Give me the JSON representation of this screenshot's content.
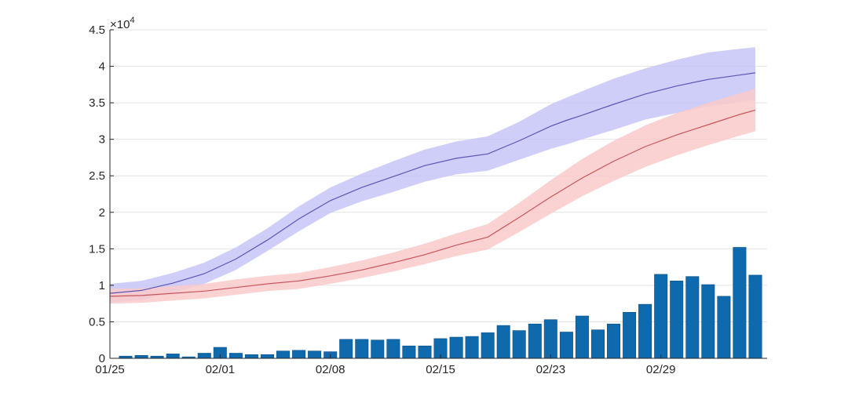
{
  "chart_data": {
    "type": "bar+line",
    "title": "",
    "xlabel": "",
    "ylabel": "",
    "y_scale_label": "×10",
    "y_scale_exponent": "4",
    "x_index_range": [
      0,
      41
    ],
    "ylim": [
      0,
      4.5
    ],
    "grid": true,
    "x_ticks": [
      {
        "index": 0,
        "label": "01/25"
      },
      {
        "index": 7,
        "label": "02/01"
      },
      {
        "index": 14,
        "label": "02/08"
      },
      {
        "index": 21,
        "label": "02/15"
      },
      {
        "index": 28,
        "label": "02/23"
      },
      {
        "index": 35,
        "label": "02/29"
      }
    ],
    "y_ticks": [
      {
        "value": 0,
        "label": "0"
      },
      {
        "value": 0.5,
        "label": "0.5"
      },
      {
        "value": 1,
        "label": "1"
      },
      {
        "value": 1.5,
        "label": "1.5"
      },
      {
        "value": 2,
        "label": "2"
      },
      {
        "value": 2.5,
        "label": "2.5"
      },
      {
        "value": 3,
        "label": "3"
      },
      {
        "value": 3.5,
        "label": "3.5"
      },
      {
        "value": 4,
        "label": "4"
      },
      {
        "value": 4.5,
        "label": "4.5"
      }
    ],
    "bars": {
      "name": "daily",
      "color": "#0e6aad",
      "x": [
        1,
        2,
        3,
        4,
        5,
        6,
        7,
        8,
        9,
        10,
        11,
        12,
        13,
        14,
        15,
        16,
        17,
        18,
        19,
        20,
        21,
        22,
        23,
        24,
        25,
        26,
        27,
        28,
        29,
        30,
        31,
        32,
        33,
        34,
        35,
        36,
        37,
        38,
        39,
        40,
        41
      ],
      "values": [
        0.03,
        0.04,
        0.03,
        0.06,
        0.02,
        0.07,
        0.15,
        0.07,
        0.05,
        0.05,
        0.1,
        0.11,
        0.1,
        0.09,
        0.26,
        0.26,
        0.25,
        0.26,
        0.17,
        0.17,
        0.27,
        0.29,
        0.3,
        0.35,
        0.45,
        0.38,
        0.47,
        0.53,
        0.36,
        0.58,
        0.39,
        0.47,
        0.63,
        0.74,
        1.15,
        1.06,
        1.12,
        1.01,
        0.85,
        1.52,
        1.14
      ]
    },
    "series": [
      {
        "name": "blue",
        "line_color": "#5a55b8",
        "band_color": "#c5c5f7",
        "x": [
          0,
          2,
          4,
          6,
          8,
          10,
          12,
          14,
          16,
          18,
          20,
          22,
          24,
          26,
          28,
          29,
          30,
          32,
          34,
          36,
          38,
          40,
          41
        ],
        "values": [
          0.89,
          0.93,
          1.03,
          1.16,
          1.36,
          1.62,
          1.91,
          2.16,
          2.34,
          2.49,
          2.64,
          2.74,
          2.8,
          2.98,
          3.18,
          3.26,
          3.33,
          3.48,
          3.62,
          3.73,
          3.82,
          3.88,
          3.91
        ],
        "lower": [
          0.77,
          0.8,
          0.9,
          1.02,
          1.21,
          1.47,
          1.74,
          1.99,
          2.15,
          2.28,
          2.42,
          2.52,
          2.57,
          2.72,
          2.87,
          2.93,
          3.0,
          3.13,
          3.27,
          3.36,
          3.45,
          3.51,
          3.54
        ],
        "upper": [
          1.02,
          1.06,
          1.17,
          1.31,
          1.52,
          1.78,
          2.08,
          2.34,
          2.53,
          2.7,
          2.86,
          2.97,
          3.04,
          3.24,
          3.48,
          3.57,
          3.66,
          3.83,
          3.97,
          4.09,
          4.19,
          4.24,
          4.26
        ]
      },
      {
        "name": "red",
        "line_color": "#c9555c",
        "band_color": "#f9caca",
        "x": [
          0,
          2,
          4,
          6,
          8,
          10,
          12,
          14,
          16,
          18,
          20,
          22,
          24,
          26,
          28,
          30,
          32,
          34,
          36,
          38,
          40,
          41
        ],
        "values": [
          0.85,
          0.86,
          0.89,
          0.92,
          0.97,
          1.02,
          1.06,
          1.13,
          1.21,
          1.31,
          1.42,
          1.55,
          1.66,
          1.93,
          2.21,
          2.47,
          2.7,
          2.9,
          3.06,
          3.2,
          3.34,
          3.4
        ],
        "lower": [
          0.75,
          0.76,
          0.79,
          0.82,
          0.87,
          0.92,
          0.95,
          1.02,
          1.1,
          1.19,
          1.29,
          1.4,
          1.49,
          1.73,
          1.98,
          2.22,
          2.43,
          2.62,
          2.78,
          2.92,
          3.05,
          3.11
        ],
        "upper": [
          0.95,
          0.96,
          0.99,
          1.02,
          1.08,
          1.13,
          1.17,
          1.25,
          1.34,
          1.45,
          1.57,
          1.71,
          1.84,
          2.13,
          2.44,
          2.73,
          2.98,
          3.19,
          3.36,
          3.5,
          3.63,
          3.69
        ]
      }
    ]
  }
}
